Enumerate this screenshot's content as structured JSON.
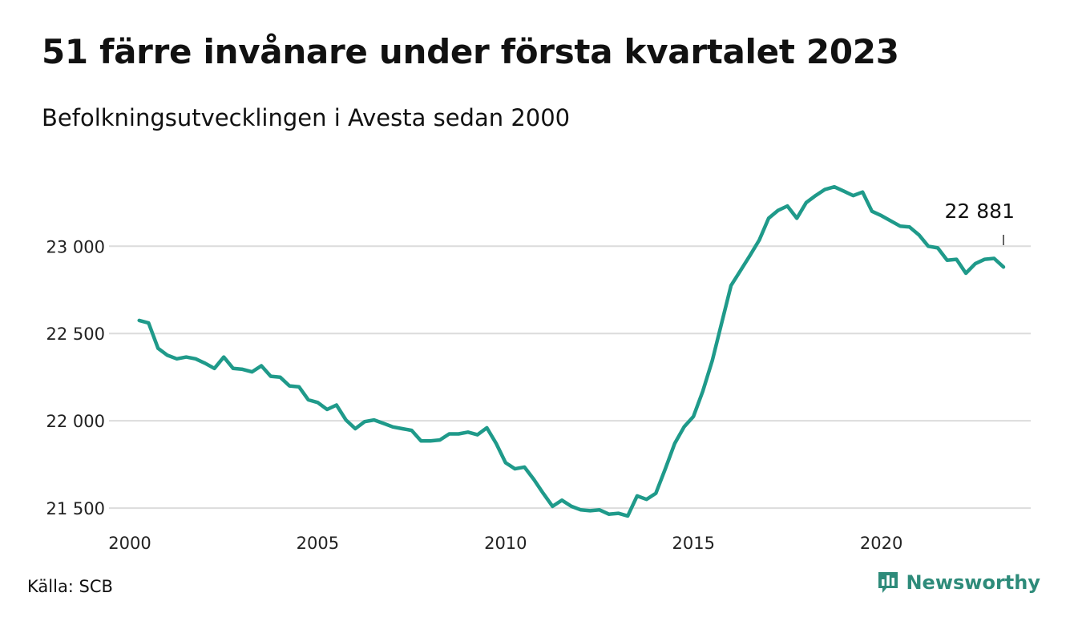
{
  "header": {
    "title": "51 färre invånare under första kvartalet 2023",
    "subtitle": "Befolkningsutvecklingen i Avesta sedan 2000"
  },
  "footer": {
    "source": "Källa: SCB",
    "brand": "Newsworthy",
    "brand_icon": "newsworthy-logo-icon"
  },
  "colors": {
    "line": "#1f9a8a",
    "grid": "#dcdcdc",
    "brand": "#2e8b7a"
  },
  "chart_data": {
    "type": "line",
    "title": "51 färre invånare under första kvartalet 2023",
    "subtitle": "Befolkningsutvecklingen i Avesta sedan 2000",
    "xlabel": "",
    "ylabel": "",
    "xlim": [
      2000,
      2023.25
    ],
    "ylim": [
      21450,
      23350
    ],
    "x_ticks": [
      2000,
      2005,
      2010,
      2015,
      2020
    ],
    "x_tick_labels": [
      "2000",
      "2005",
      "2010",
      "2015",
      "2020"
    ],
    "y_ticks": [
      21500,
      22000,
      22500,
      23000
    ],
    "y_tick_labels": [
      "21 500",
      "22 000",
      "22 500",
      "23 000"
    ],
    "grid": "horizontal",
    "legend": "none",
    "annotation": {
      "text": "22 881",
      "x": 2023.25,
      "y": 22881
    },
    "series": [
      {
        "x": [
          2000.25,
          2000.5,
          2000.75,
          2001.0,
          2001.25,
          2001.5,
          2001.75,
          2002.0,
          2002.25,
          2002.5,
          2002.75,
          2003.0,
          2003.25,
          2003.5,
          2003.75,
          2004.0,
          2004.25,
          2004.5,
          2004.75,
          2005.0,
          2005.25,
          2005.5,
          2005.75,
          2006.0,
          2006.25,
          2006.5,
          2006.75,
          2007.0,
          2007.25,
          2007.5,
          2007.75,
          2008.0,
          2008.25,
          2008.5,
          2008.75,
          2009.0,
          2009.25,
          2009.5,
          2009.75,
          2010.0,
          2010.25,
          2010.5,
          2010.75,
          2011.0,
          2011.25,
          2011.5,
          2011.75,
          2012.0,
          2012.25,
          2012.5,
          2012.75,
          2013.0,
          2013.25,
          2013.5,
          2013.75,
          2014.0,
          2014.25,
          2014.5,
          2014.75,
          2015.0,
          2015.25,
          2015.5,
          2015.75,
          2016.0,
          2016.25,
          2016.5,
          2016.75,
          2017.0,
          2017.25,
          2017.5,
          2017.75,
          2018.0,
          2018.25,
          2018.5,
          2018.75,
          2019.0,
          2019.25,
          2019.5,
          2019.75,
          2020.0,
          2020.25,
          2020.5,
          2020.75,
          2021.0,
          2021.25,
          2021.5,
          2021.75,
          2022.0,
          2022.25,
          2022.5,
          2022.75,
          2023.0,
          2023.25
        ],
        "values": [
          22575,
          22560,
          22415,
          22375,
          22355,
          22365,
          22355,
          22330,
          22300,
          22365,
          22300,
          22295,
          22280,
          22315,
          22255,
          22250,
          22200,
          22195,
          22120,
          22105,
          22065,
          22090,
          22005,
          21955,
          21995,
          22005,
          21985,
          21965,
          21955,
          21945,
          21885,
          21885,
          21890,
          21925,
          21925,
          21935,
          21920,
          21960,
          21870,
          21760,
          21725,
          21735,
          21665,
          21585,
          21510,
          21545,
          21510,
          21490,
          21485,
          21490,
          21465,
          21470,
          21455,
          21570,
          21550,
          21585,
          21725,
          21870,
          21965,
          22025,
          22170,
          22345,
          22560,
          22775,
          22860,
          22945,
          23035,
          23160,
          23205,
          23230,
          23160,
          23250,
          23290,
          23325,
          23340,
          23315,
          23290,
          23310,
          23200,
          23175,
          23145,
          23115,
          23110,
          23065,
          23000,
          22990,
          22920,
          22925,
          22845,
          22900,
          22925,
          22930,
          22881
        ]
      }
    ]
  }
}
